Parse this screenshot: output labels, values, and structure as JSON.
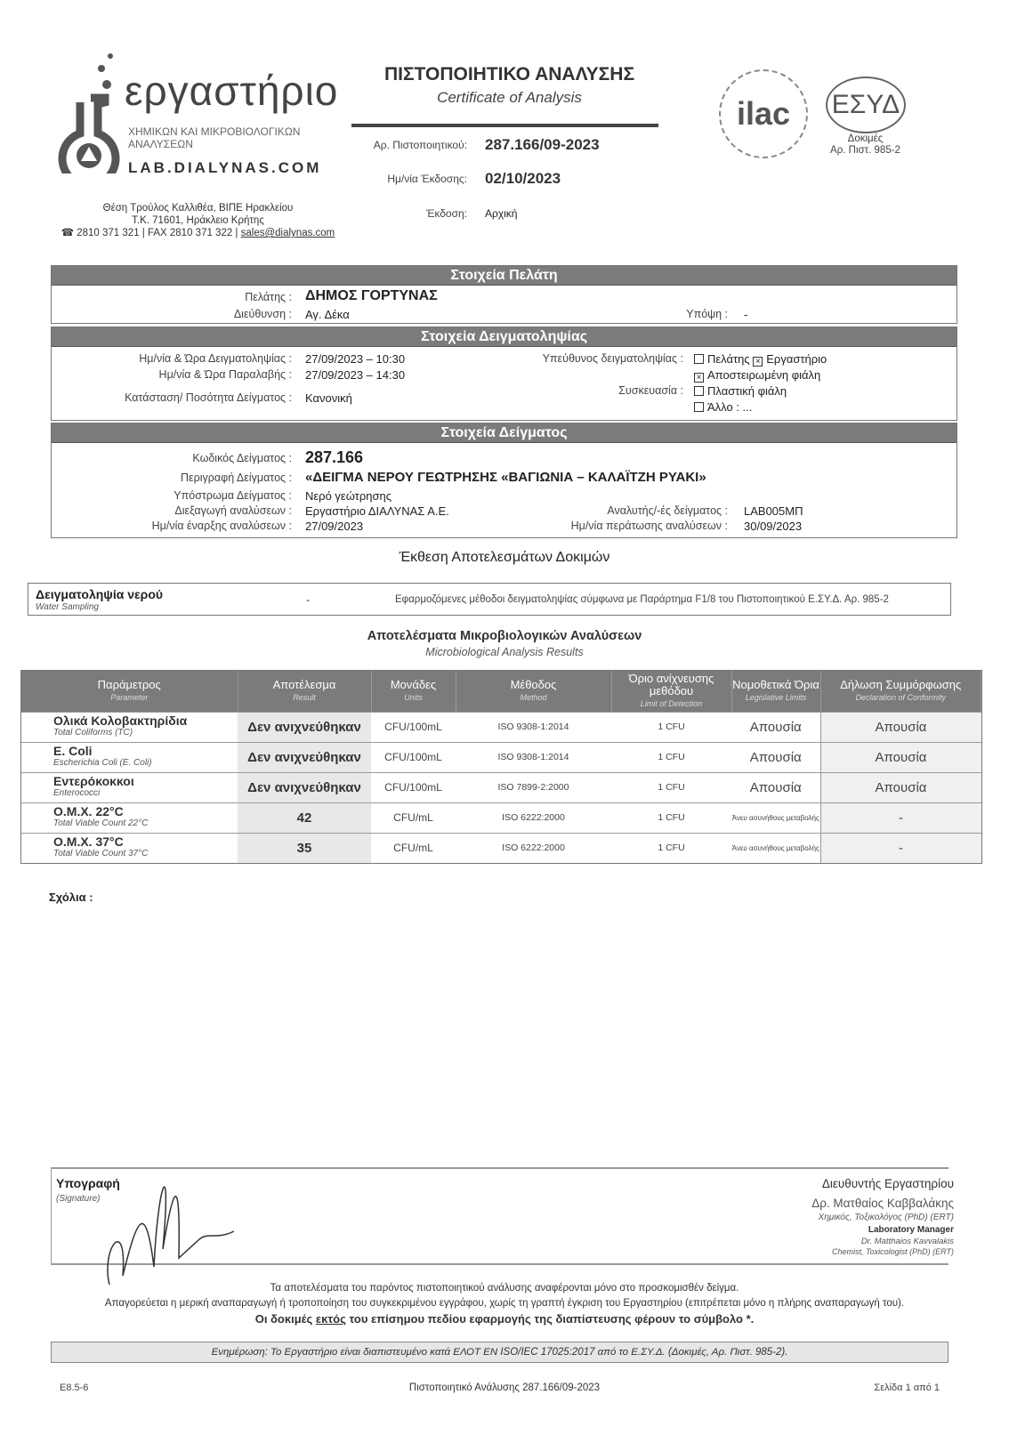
{
  "lab": {
    "name": "εργαστήριο",
    "sub1": "ΧΗΜΙΚΩΝ ΚΑΙ ΜΙΚΡΟΒΙΟΛΟΓΙΚΩΝ",
    "sub2": "ΑΝΑΛΥΣΕΩΝ",
    "url": "LAB.DIALYNAS.COM",
    "addr1": "Θέση Τρούλος Καλλιθέα, ΒΙΠΕ Ηρακλείου",
    "addr2": "Τ.Κ. 71601, Ηράκλειο Κρήτης",
    "phone": "☎ 2810 371 321 | FAX 2810 371 322 |",
    "email": "sales@dialynas.com"
  },
  "header": {
    "title": "ΠΙΣΤΟΠΟΙΗΤΙΚΟ ΑΝΑΛΥΣΗΣ",
    "subtitle": "Certificate of Analysis",
    "cert_no_label": "Αρ. Πιστοποιητικού:",
    "cert_no": "287.166/09-2023",
    "issue_date_label": "Ημ/νία Έκδοσης:",
    "issue_date": "02/10/2023",
    "edition_label": "Έκδοση:",
    "edition": "Αρχική",
    "ilac": "ilac",
    "esyd": "ΕΣΥΔ",
    "esyd_l1": "Δοκιμές",
    "esyd_l2": "Αρ. Πιστ. 985-2"
  },
  "client": {
    "title": "Στοιχεία Πελάτη",
    "client_label": "Πελάτης :",
    "client": "ΔΗΜΟΣ ΓΟΡΤΥΝΑΣ",
    "address_label": "Διεύθυνση :",
    "address": "Αγ. Δέκα",
    "attn_label": "Υπόψη :",
    "attn": "-"
  },
  "sampling": {
    "title": "Στοιχεία Δειγματοληψίας",
    "date_label": "Ημ/νία & Ώρα Δειγματοληψίας :",
    "date": "27/09/2023 – 10:30",
    "recv_label": "Ημ/νία & Ώρα Παραλαβής :",
    "recv": "27/09/2023 – 14:30",
    "state_label": "Κατάσταση/ Ποσότητα Δείγματος :",
    "state": "Κανονική",
    "resp_label": "Υπεύθυνος δειγματοληψίας :",
    "resp_opt1": "Πελάτης",
    "resp_opt2": "Εργαστήριο",
    "pack_label": "Συσκευασία :",
    "pack_opts": [
      "Αποστειρωμένη φιάλη",
      "Πλαστική φιάλη",
      "Άλλο : ..."
    ]
  },
  "sample": {
    "title": "Στοιχεία Δείγματος",
    "code_label": "Κωδικός Δείγματος :",
    "code": "287.166",
    "desc_label": "Περιγραφή Δείγματος :",
    "desc": "«ΔΕΙΓΜΑ ΝΕΡΟΥ ΓΕΩΤΡΗΣΗΣ «ΒΑΓΙΩΝΙΑ – ΚΑΛΑΪΤΖΗ ΡΥΑΚΙ»",
    "substrate_label": "Υπόστρωμα Δείγματος :",
    "substrate": "Νερό γεώτρησης",
    "performed_label": "Διεξαγωγή αναλύσεων :",
    "performed": "Εργαστήριο ΔΙΑΛΥΝΑΣ Α.Ε.",
    "start_label": "Ημ/νία έναρξης αναλύσεων :",
    "start": "27/09/2023",
    "analyst_label": "Αναλυτής/-ές δείγματος :",
    "analyst": "LAB005ΜΠ",
    "end_label": "Ημ/νία περάτωσης αναλύσεων :",
    "end": "30/09/2023"
  },
  "report": {
    "title": "Έκθεση Αποτελεσμάτων Δοκιμών",
    "ws_title": "Δειγματοληψία νερού",
    "ws_sub": "Water Sampling",
    "ws_dash": "-",
    "ws_text": "Εφαρμοζόμενες μέθοδοι δειγματοληψίας σύμφωνα με Παράρτημα F1/8 του Πιστοποιητικού Ε.ΣΥ.Δ. Αρ. 985-2"
  },
  "micro": {
    "title": "Αποτελέσματα Μικροβιολογικών Αναλύσεων",
    "subtitle": "Microbiological Analysis Results",
    "headers": [
      {
        "gr": "Παράμετρος",
        "en": "Parameter"
      },
      {
        "gr": "Αποτέλεσμα",
        "en": "Result"
      },
      {
        "gr": "Μονάδες",
        "en": "Units"
      },
      {
        "gr": "Μέθοδος",
        "en": "Method"
      },
      {
        "gr": "Όριο ανίχνευσης μεθόδου",
        "en": "Limit of Detection"
      },
      {
        "gr": "Νομοθετικά Όρια",
        "en": "Legislative Limits"
      },
      {
        "gr": "Δήλωση Συμμόρφωσης",
        "en": "Declaration of Conformity"
      }
    ],
    "rows": [
      {
        "p": "Ολικά Κολοβακτηρίδια",
        "pe": "Total Coliforms (TC)",
        "r": "Δεν ανιχνεύθηκαν",
        "u": "CFU/100mL",
        "m": "ISO 9308-1:2014",
        "lod": "1 CFU",
        "lim": "Απουσία",
        "dec": "Απουσία"
      },
      {
        "p": "E. Coli",
        "pe": "Escherichia Coli (E. Coli)",
        "r": "Δεν ανιχνεύθηκαν",
        "u": "CFU/100mL",
        "m": "ISO 9308-1:2014",
        "lod": "1 CFU",
        "lim": "Απουσία",
        "dec": "Απουσία"
      },
      {
        "p": "Εντερόκοκκοι",
        "pe": "Enterococci",
        "r": "Δεν ανιχνεύθηκαν",
        "u": "CFU/100mL",
        "m": "ISO 7899-2:2000",
        "lod": "1 CFU",
        "lim": "Απουσία",
        "dec": "Απουσία"
      },
      {
        "p": "Ο.Μ.Χ. 22°C",
        "pe": "Total Viable Count 22°C",
        "r": "42",
        "u": "CFU/mL",
        "m": "ISO 6222:2000",
        "lod": "1 CFU",
        "lim": "Άνευ ασυνήθους μεταβολής",
        "dec": "-"
      },
      {
        "p": "Ο.Μ.Χ. 37°C",
        "pe": "Total Viable Count 37°C",
        "r": "35",
        "u": "CFU/mL",
        "m": "ISO 6222:2000",
        "lod": "1 CFU",
        "lim": "Άνευ ασυνήθους μεταβολής",
        "dec": "-"
      }
    ]
  },
  "comments_label": "Σχόλια :",
  "signature": {
    "label": "Υπογραφή",
    "label_en": "(Signature)",
    "role": "Διευθυντής Εργαστηρίου",
    "name": "Δρ. Ματθαίος Καββαλάκης",
    "quals": "Χημικός, Τοξικολόγος (PhD) (ERT)",
    "role_en": "Laboratory Manager",
    "name_en": "Dr. Matthaios Kavvalakis",
    "quals_en": "Chemist, Toxicologist (PhD) (ERT)"
  },
  "disclaimer": {
    "l1": "Τα αποτελέσματα του παρόντος πιστοποιητικού ανάλυσης αναφέρονται μόνο στο προσκομισθέν δείγμα.",
    "l2": "Απαγορεύεται η μερική αναπαραγωγή ή τροποποίηση του συγκεκριμένου εγγράφου, χωρίς τη γραπτή έγκριση του Εργαστηρίου (επιτρέπεται μόνο η πλήρης αναπαραγωγή του).",
    "l3a": "Οι δοκιμές ",
    "l3b": "εκτός",
    "l3c": " του επίσημου πεδίου εφαρμογής της διαπίστευσης φέρουν το σύμβολο *."
  },
  "update": "Ενημέρωση: Το Εργαστήριο είναι διαπιστευμένο κατά ΕΛΟΤ ΕΝ ISO/IEC 17025:2017 από το Ε.ΣΥ.Δ. (Δοκιμές, Αρ. Πιστ. 985-2).",
  "footer": {
    "code": "E8.5-6",
    "center": "Πιστοποιητικό Ανάλυσης 287.166/09-2023",
    "page": "Σελίδα 1 από 1"
  }
}
